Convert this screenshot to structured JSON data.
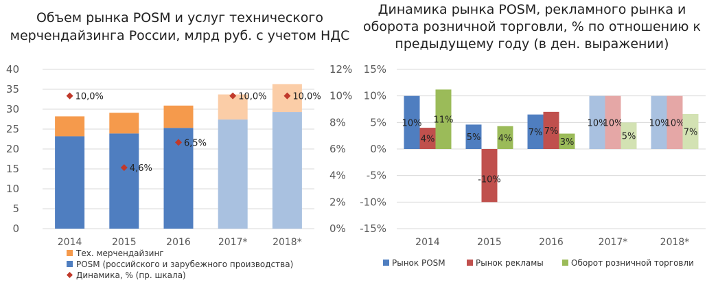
{
  "colors": {
    "posm": "#4f7ec0",
    "posm_forecast": "#a9c1e0",
    "merch": "#f59a4c",
    "merch_forecast": "#fbcda7",
    "diamond": "#c0392b",
    "ads": "#c0504d",
    "ads_forecast": "#e5a7a6",
    "retail": "#9bbb59",
    "retail_forecast": "#d3e2b3",
    "grid": "#d9d9d9",
    "axis_text": "#595959"
  },
  "chart_data": [
    {
      "type": "bar",
      "stacked": true,
      "title_lines": [
        "Объем рынка POSM и услуг технического",
        "мерчендайзинга России, млрд руб. с учетом НДС"
      ],
      "categories": [
        "2014",
        "2015",
        "2016",
        "2017*",
        "2018*"
      ],
      "forecast_from_index": 3,
      "series": [
        {
          "name": "POSM (российского и зарубежного производства)",
          "values": [
            23.2,
            23.9,
            25.3,
            27.4,
            29.3
          ]
        },
        {
          "name": "Тех. мерчендайзинг",
          "values": [
            5.0,
            5.2,
            5.6,
            6.3,
            7.0
          ]
        }
      ],
      "secondary_series": {
        "name": "Динамика, % (пр. шкала)",
        "values": [
          10.0,
          4.6,
          6.5,
          10.0,
          10.0
        ],
        "labels": [
          "10,0%",
          "4,6%",
          "6,5%",
          "10,0%",
          "10,0%"
        ]
      },
      "ylim": [
        0,
        40
      ],
      "yticks": [
        "0",
        "5",
        "10",
        "15",
        "20",
        "25",
        "30",
        "35",
        "40"
      ],
      "y2lim": [
        0,
        12
      ],
      "y2ticks": [
        "0%",
        "2%",
        "4%",
        "6%",
        "8%",
        "10%",
        "12%"
      ],
      "grid": true,
      "legend_position": "bottom-left"
    },
    {
      "type": "bar",
      "title_lines": [
        "Динамика рынка POSM, рекламного рынка и",
        "оборота розничной торговли, % по отношению к",
        "предыдущему году (в ден. выражении)"
      ],
      "categories": [
        "2014",
        "2015",
        "2016",
        "2017*",
        "2018*"
      ],
      "forecast_from_index": 3,
      "series": [
        {
          "name": "Рынок POSM",
          "values": [
            10,
            4.6,
            6.5,
            10,
            10
          ],
          "labels": [
            "10%",
            "5%",
            "7%",
            "10%",
            "10%"
          ]
        },
        {
          "name": "Рынок рекламы",
          "values": [
            4,
            -10,
            7,
            10,
            10
          ],
          "labels": [
            "4%",
            "-10%",
            "7%",
            "10%",
            "10%"
          ]
        },
        {
          "name": "Оборот розничной торговли",
          "values": [
            11.2,
            4.3,
            2.9,
            5.0,
            6.6
          ],
          "labels": [
            "11%",
            "4%",
            "3%",
            "5%",
            "7%"
          ]
        }
      ],
      "ylim": [
        -15,
        15
      ],
      "yticks": [
        "-15%",
        "-10%",
        "-5%",
        "0%",
        "5%",
        "10%",
        "15%"
      ],
      "grid": true,
      "legend_position": "bottom"
    }
  ]
}
